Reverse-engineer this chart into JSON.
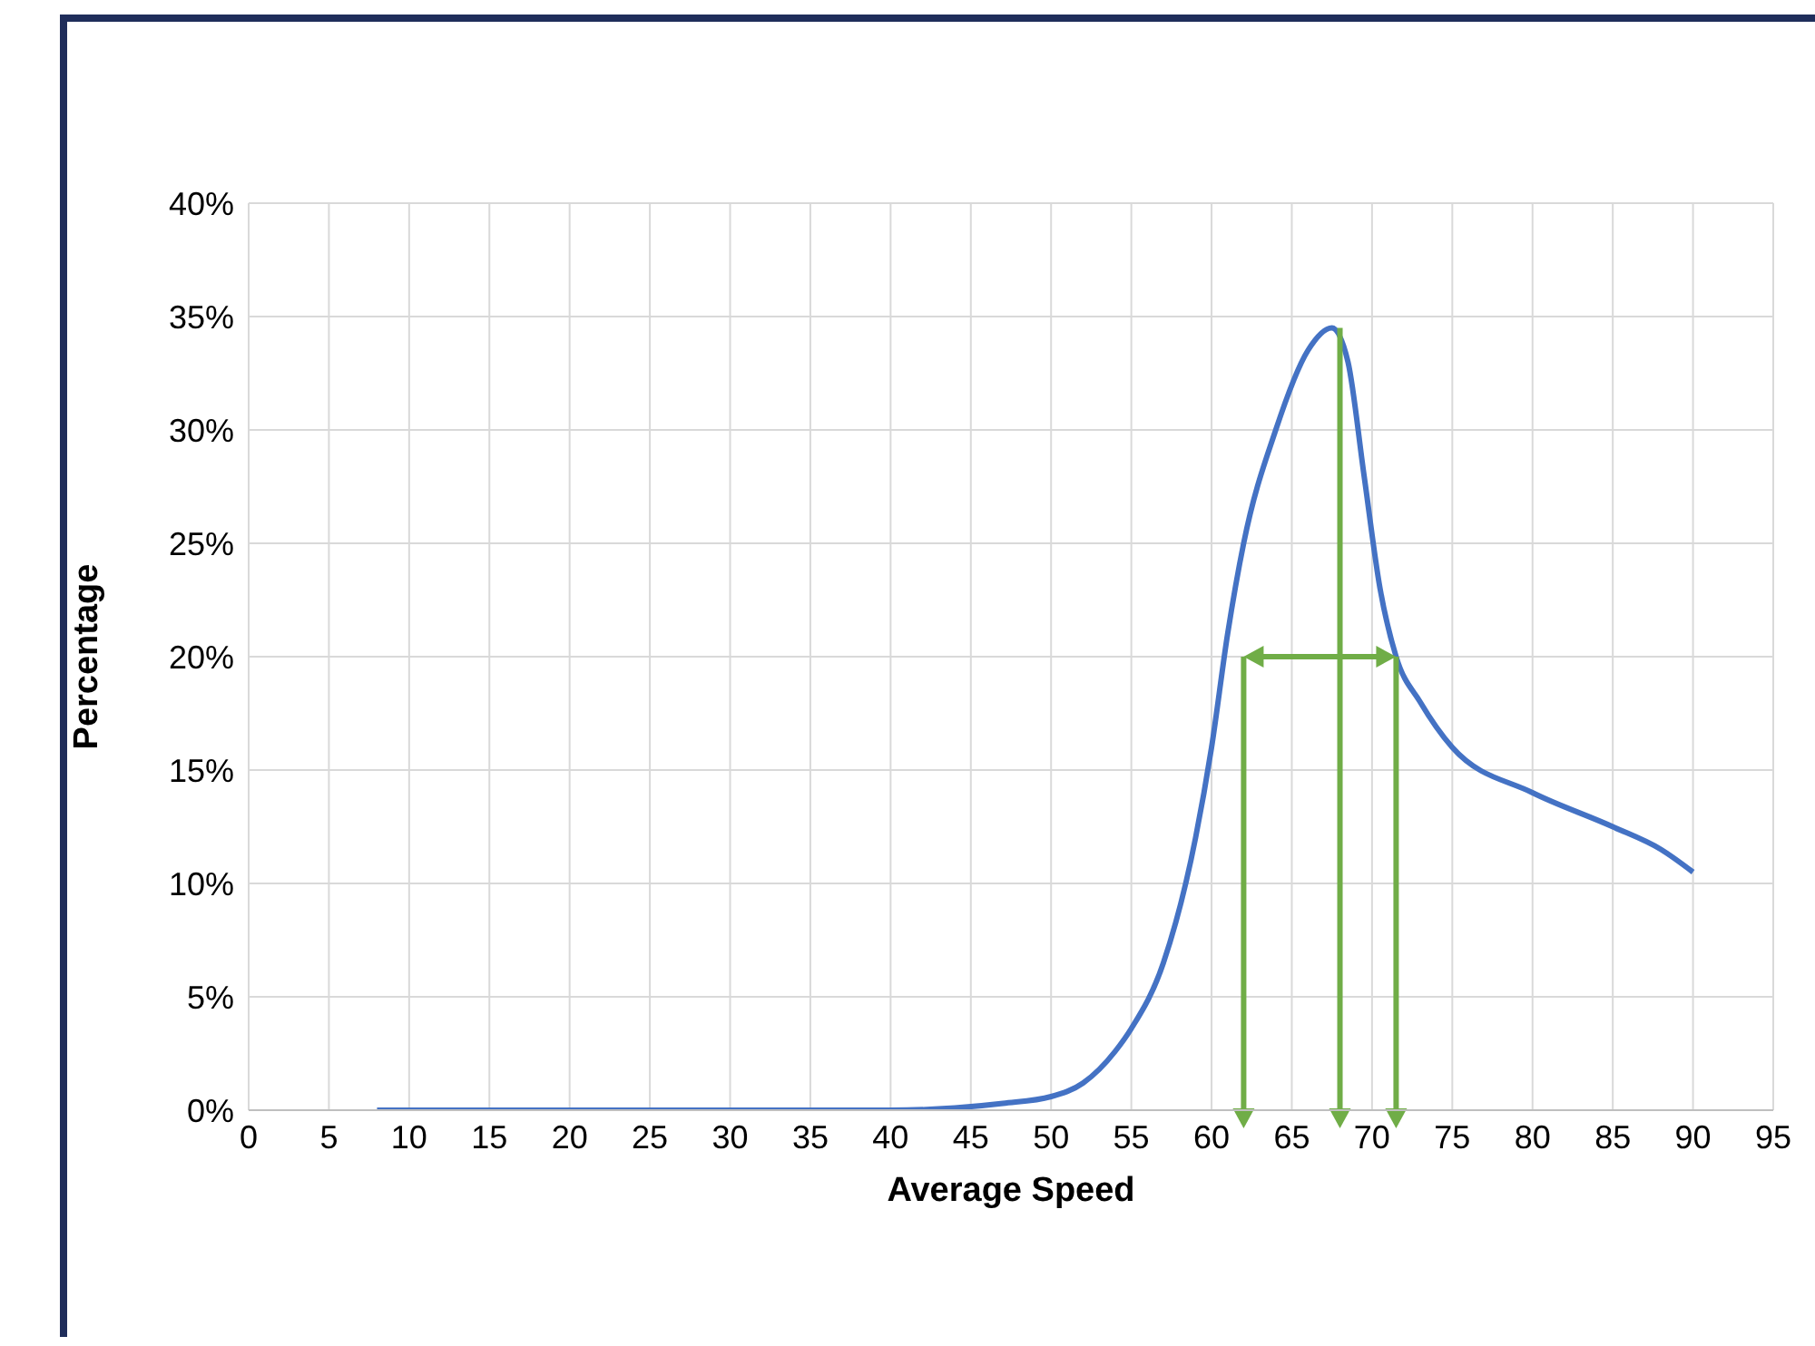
{
  "chart_data": {
    "type": "line",
    "xlabel": "Average Speed",
    "ylabel": "Percentage",
    "x": [
      8,
      15,
      20,
      30,
      40,
      44,
      47,
      50,
      52,
      54,
      55,
      57,
      59,
      60,
      61,
      62,
      64,
      66,
      67.5,
      68.5,
      69.5,
      70.5,
      71.5,
      73,
      75,
      80,
      85,
      88,
      90
    ],
    "series": [
      {
        "color": "#4472c4",
        "values": [
          0,
          0,
          0,
          0,
          0,
          0.1,
          0.3,
          0.6,
          1.2,
          2.6,
          3.6,
          6.5,
          12,
          16,
          21,
          25,
          30,
          33.5,
          34.5,
          33,
          28,
          23,
          20,
          18,
          16,
          14,
          12.5,
          11.5,
          10.5
        ]
      }
    ],
    "xlim": [
      0,
      95
    ],
    "xticks": [
      0,
      5,
      10,
      15,
      20,
      25,
      30,
      35,
      40,
      45,
      50,
      55,
      60,
      65,
      70,
      75,
      80,
      85,
      90,
      95
    ],
    "ylim": [
      0,
      40
    ],
    "yticks": [
      {
        "value": 0,
        "label": "0%"
      },
      {
        "value": 5,
        "label": "5%"
      },
      {
        "value": 10,
        "label": "10%"
      },
      {
        "value": 15,
        "label": "15%"
      },
      {
        "value": 20,
        "label": "20%"
      },
      {
        "value": 25,
        "label": "25%"
      },
      {
        "value": 30,
        "label": "30%"
      },
      {
        "value": 35,
        "label": "35%"
      },
      {
        "value": 40,
        "label": "40%"
      }
    ],
    "ref_lines": [
      {
        "axis": "x",
        "value": 62,
        "color": "#70ad47"
      },
      {
        "axis": "x",
        "value": 68,
        "color": "#70ad47"
      },
      {
        "axis": "x",
        "value": 71.5,
        "color": "#70ad47"
      }
    ],
    "grid": true,
    "marker": "none",
    "line_style": "solid",
    "legend": false
  }
}
